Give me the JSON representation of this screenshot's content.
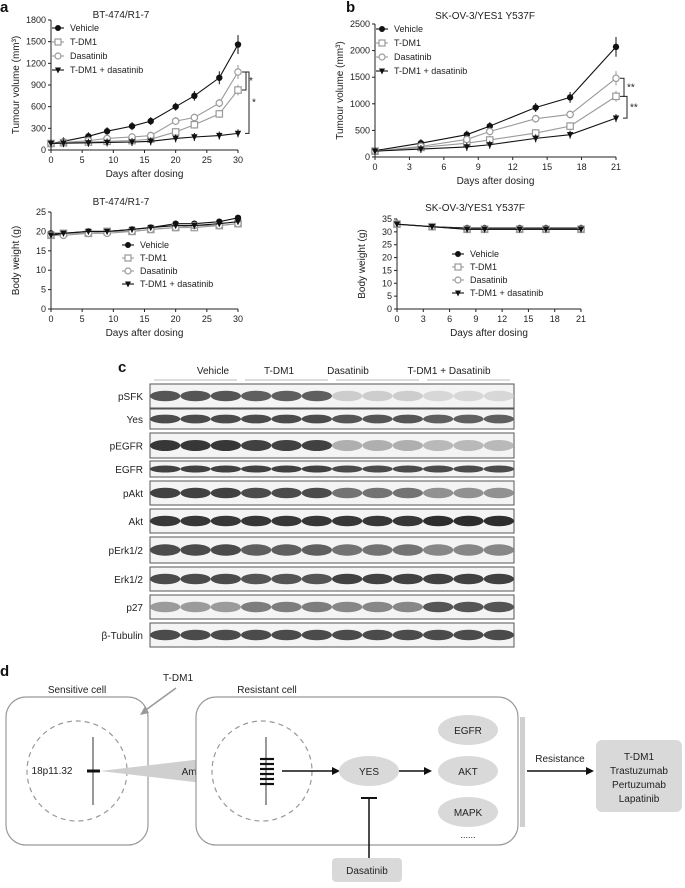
{
  "panel_letters": [
    "a",
    "b",
    "c",
    "d"
  ],
  "chart_data": [
    {
      "type": "line",
      "title": "BT-474/R1-7",
      "xlabel": "Days after dosing",
      "ylabel": "Tumour volume (mm³)",
      "xlim": [
        0,
        30
      ],
      "ylim": [
        0,
        1800
      ],
      "xticks": [
        0,
        5,
        10,
        15,
        20,
        25,
        30
      ],
      "yticks": [
        0,
        300,
        600,
        900,
        1200,
        1500,
        1800
      ],
      "legend_position": "top-left",
      "x": [
        0,
        2,
        6,
        9,
        13,
        16,
        20,
        23,
        27,
        30
      ],
      "series": [
        {
          "name": "Vehicle",
          "marker": "circle-filled",
          "color": "#111111",
          "values": [
            90,
            120,
            190,
            260,
            330,
            400,
            600,
            750,
            1000,
            1460
          ]
        },
        {
          "name": "T-DM1",
          "marker": "square-open",
          "color": "#9a9a9a",
          "values": [
            90,
            100,
            110,
            120,
            130,
            150,
            250,
            350,
            500,
            830
          ]
        },
        {
          "name": "Dasatinib",
          "marker": "circle-open",
          "color": "#9a9a9a",
          "values": [
            90,
            105,
            130,
            160,
            180,
            200,
            400,
            450,
            650,
            1080
          ]
        },
        {
          "name": "T-DM1 + dasatinib",
          "marker": "triangle-down-filled",
          "color": "#111111",
          "values": [
            90,
            95,
            100,
            105,
            110,
            120,
            160,
            180,
            200,
            230
          ]
        }
      ],
      "annotations": [
        "*",
        "*"
      ]
    },
    {
      "type": "line",
      "title": "BT-474/R1-7",
      "xlabel": "Days after dosing",
      "ylabel": "Body weight (g)",
      "xlim": [
        0,
        30
      ],
      "ylim": [
        0,
        25
      ],
      "xticks": [
        0,
        5,
        10,
        15,
        20,
        25,
        30
      ],
      "yticks": [
        0,
        5,
        10,
        15,
        20,
        25
      ],
      "legend_position": "bottom-right",
      "x": [
        0,
        2,
        6,
        9,
        13,
        16,
        20,
        23,
        27,
        30
      ],
      "series": [
        {
          "name": "Vehicle",
          "marker": "circle-filled",
          "color": "#111111",
          "values": [
            19.5,
            19.5,
            20,
            20,
            20.5,
            21,
            22,
            22,
            22.5,
            23.5
          ]
        },
        {
          "name": "T-DM1",
          "marker": "square-open",
          "color": "#9a9a9a",
          "values": [
            19,
            19.5,
            19.5,
            20,
            20,
            20.5,
            21,
            21,
            21.5,
            22
          ]
        },
        {
          "name": "Dasatinib",
          "marker": "circle-open",
          "color": "#9a9a9a",
          "values": [
            19,
            19,
            19.5,
            19.5,
            20,
            20.5,
            21,
            21.5,
            21.5,
            22
          ]
        },
        {
          "name": "T-DM1 + dasatinib",
          "marker": "triangle-down-filled",
          "color": "#111111",
          "values": [
            19,
            19.5,
            20,
            20,
            20.5,
            21,
            21.5,
            21.5,
            22,
            22.5
          ]
        }
      ]
    },
    {
      "type": "line",
      "title": "SK-OV-3/YES1 Y537F",
      "xlabel": "Days after dosing",
      "ylabel": "Tumour volume (mm³)",
      "xlim": [
        0,
        21
      ],
      "ylim": [
        0,
        2500
      ],
      "xticks": [
        0,
        3,
        6,
        9,
        12,
        15,
        18,
        21
      ],
      "yticks": [
        0,
        500,
        1000,
        1500,
        2000,
        2500
      ],
      "legend_position": "top-left",
      "x": [
        0,
        4,
        8,
        10,
        14,
        17,
        21
      ],
      "series": [
        {
          "name": "Vehicle",
          "marker": "circle-filled",
          "color": "#111111",
          "values": [
            120,
            260,
            420,
            580,
            930,
            1120,
            2070
          ]
        },
        {
          "name": "T-DM1",
          "marker": "square-open",
          "color": "#9a9a9a",
          "values": [
            110,
            180,
            260,
            320,
            450,
            580,
            1140
          ]
        },
        {
          "name": "Dasatinib",
          "marker": "circle-open",
          "color": "#9a9a9a",
          "values": [
            110,
            200,
            330,
            480,
            720,
            800,
            1480
          ]
        },
        {
          "name": "T-DM1 + dasatinib",
          "marker": "triangle-down-filled",
          "color": "#111111",
          "values": [
            110,
            150,
            190,
            230,
            350,
            420,
            730
          ]
        }
      ],
      "annotations": [
        "**",
        "**"
      ]
    },
    {
      "type": "line",
      "title": "SK-OV-3/YES1 Y537F",
      "xlabel": "Days after dosing",
      "ylabel": "Body weight (g)",
      "xlim": [
        0,
        21
      ],
      "ylim": [
        0,
        35
      ],
      "xticks": [
        0,
        3,
        6,
        9,
        12,
        15,
        18,
        21
      ],
      "yticks": [
        0,
        5,
        10,
        15,
        20,
        25,
        30,
        35
      ],
      "legend_position": "bottom-right",
      "x": [
        0,
        4,
        8,
        10,
        14,
        17,
        21
      ],
      "series": [
        {
          "name": "Vehicle",
          "marker": "circle-filled",
          "color": "#111111",
          "values": [
            33,
            32,
            31.5,
            31.5,
            31.5,
            31.5,
            31.5
          ]
        },
        {
          "name": "T-DM1",
          "marker": "square-open",
          "color": "#9a9a9a",
          "values": [
            33,
            32,
            31,
            31,
            31,
            31,
            31
          ]
        },
        {
          "name": "Dasatinib",
          "marker": "circle-open",
          "color": "#9a9a9a",
          "values": [
            33,
            32,
            31,
            31,
            31,
            31,
            31
          ]
        },
        {
          "name": "T-DM1 + dasatinib",
          "marker": "triangle-down-filled",
          "color": "#111111",
          "values": [
            33,
            32,
            31,
            31,
            31,
            31,
            31
          ]
        }
      ]
    }
  ],
  "western_blot": {
    "groups": [
      "Vehicle",
      "T-DM1",
      "Dasatinib",
      "T-DM1 + Dasatinib"
    ],
    "rows": [
      "pSFK",
      "Yes",
      "pEGFR",
      "EGFR",
      "pAkt",
      "Akt",
      "pErk1/2",
      "Erk1/2",
      "p27",
      "β-Tubulin"
    ]
  },
  "schematic": {
    "sensitive_cell": "Sensitive cell",
    "tdm1_label": "T-DM1",
    "resistant_cell": "Resistant cell",
    "locus": "18p11.32",
    "amplification": "Amplification",
    "yes": "YES",
    "targets": [
      "EGFR",
      "AKT",
      "MAPK",
      "......"
    ],
    "resistance": "Resistance",
    "drugs": [
      "T-DM1",
      "Trastuzumab",
      "Pertuzumab",
      "Lapatinib"
    ],
    "inhibitor": "Dasatinib"
  }
}
